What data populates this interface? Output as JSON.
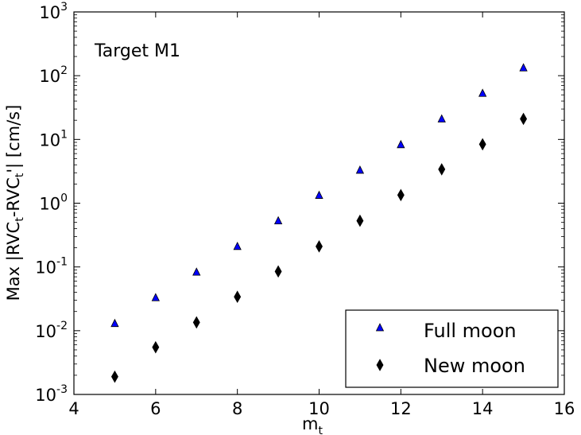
{
  "chart_data": {
    "type": "scatter",
    "annotation": "Target M1",
    "xlabel": "m",
    "xlabel_sub": "t",
    "ylabel": "Max |RVC",
    "ylabel_sub1": "t",
    "ylabel_mid": "-RVC",
    "ylabel_sub2": "t",
    "ylabel_end": "'| [cm/s]",
    "xlim": [
      4,
      16
    ],
    "ylim": [
      0.001,
      1000
    ],
    "yscale": "log",
    "x_ticks": [
      "4",
      "6",
      "8",
      "10",
      "12",
      "14",
      "16"
    ],
    "y_ticks": [
      {
        "base": "10",
        "exp": "-3"
      },
      {
        "base": "10",
        "exp": "-2"
      },
      {
        "base": "10",
        "exp": "-1"
      },
      {
        "base": "10",
        "exp": "0"
      },
      {
        "base": "10",
        "exp": "1"
      },
      {
        "base": "10",
        "exp": "2"
      },
      {
        "base": "10",
        "exp": "3"
      }
    ],
    "grid": false,
    "legend_position": "lower-right",
    "series": [
      {
        "name": "Full moon",
        "marker": "triangle",
        "color": "#0000ff",
        "x": [
          5,
          6,
          7,
          8,
          9,
          10,
          11,
          12,
          13,
          14,
          15
        ],
        "y": [
          0.013,
          0.033,
          0.083,
          0.21,
          0.53,
          1.33,
          3.3,
          8.3,
          21,
          53,
          133
        ]
      },
      {
        "name": "New moon",
        "marker": "diamond",
        "color": "#000000",
        "x": [
          5,
          6,
          7,
          8,
          9,
          10,
          11,
          12,
          13,
          14,
          15
        ],
        "y": [
          0.0019,
          0.0055,
          0.0135,
          0.034,
          0.085,
          0.21,
          0.53,
          1.34,
          3.4,
          8.4,
          21
        ]
      }
    ]
  }
}
